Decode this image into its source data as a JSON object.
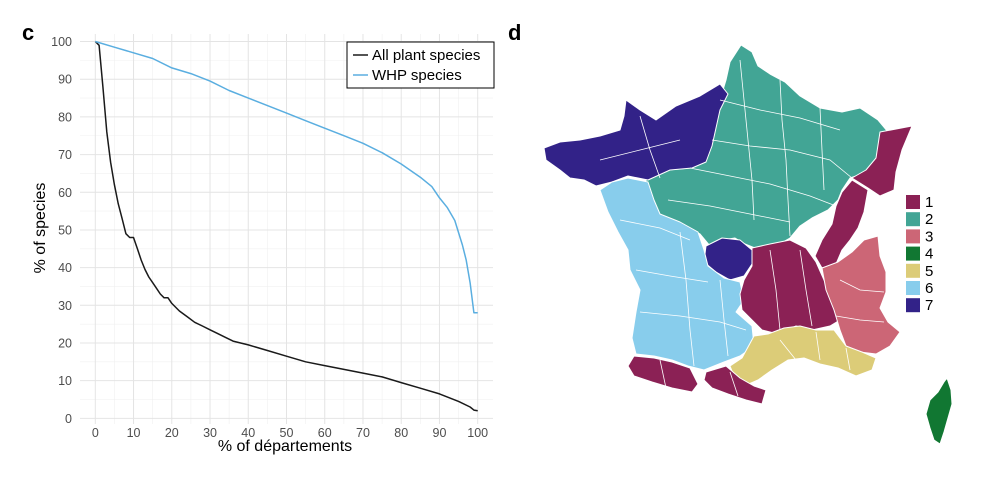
{
  "panel_c_label": "c",
  "panel_d_label": "d",
  "chart_data": {
    "type": "line",
    "xlabel": "% of départements",
    "ylabel": "% of species",
    "xlim": [
      -4,
      104
    ],
    "ylim": [
      -1.5,
      102
    ],
    "x_ticks": [
      0,
      10,
      20,
      30,
      40,
      50,
      60,
      70,
      80,
      90,
      100
    ],
    "y_ticks": [
      0,
      10,
      20,
      30,
      40,
      50,
      60,
      70,
      80,
      90,
      100
    ],
    "grid": true,
    "legend_position": "top-right",
    "series": [
      {
        "name": "All plant species",
        "color": "#1a1a1a",
        "x": [
          0,
          1,
          2,
          3,
          4,
          5,
          6,
          7,
          8,
          9,
          10,
          11,
          12,
          13,
          14,
          15,
          16,
          17,
          18,
          19,
          20,
          22,
          24,
          26,
          28,
          30,
          32,
          34,
          36,
          38,
          40,
          45,
          50,
          55,
          60,
          65,
          70,
          75,
          80,
          85,
          90,
          95,
          98,
          99,
          100
        ],
        "values": [
          100,
          99,
          88,
          76,
          68,
          62,
          57,
          53,
          49,
          48,
          48,
          45,
          42,
          39.5,
          37.5,
          36,
          34.5,
          33,
          32,
          32,
          30.5,
          28.5,
          27,
          25.5,
          24.5,
          23.5,
          22.5,
          21.5,
          20.5,
          20,
          19.5,
          18,
          16.5,
          15,
          14,
          13,
          12,
          11,
          9.5,
          8,
          6.5,
          4.5,
          3,
          2.2,
          2
        ]
      },
      {
        "name": "WHP species",
        "color": "#5aaee0",
        "x": [
          0,
          5,
          10,
          15,
          20,
          25,
          30,
          35,
          40,
          45,
          50,
          55,
          60,
          65,
          70,
          75,
          80,
          85,
          88,
          90,
          92,
          94,
          96,
          97,
          98,
          99,
          100
        ],
        "values": [
          100,
          98.5,
          97,
          95.5,
          93,
          91.5,
          89.5,
          87,
          85,
          83,
          81,
          79,
          77,
          75,
          73,
          70.5,
          67.5,
          64,
          61.5,
          58.5,
          56,
          52.5,
          46,
          42,
          36,
          28,
          28
        ]
      }
    ]
  },
  "map": {
    "legend": [
      {
        "label": "1",
        "color": "#8b2155"
      },
      {
        "label": "2",
        "color": "#42a595"
      },
      {
        "label": "3",
        "color": "#cc6676"
      },
      {
        "label": "4",
        "color": "#117732"
      },
      {
        "label": "5",
        "color": "#dccc78"
      },
      {
        "label": "6",
        "color": "#88cdec"
      },
      {
        "label": "7",
        "color": "#322288"
      }
    ],
    "regions": [
      {
        "name": "brittany-normandy",
        "cluster": 7
      },
      {
        "name": "north-east-paris-basin",
        "cluster": 2
      },
      {
        "name": "alsace-jura-alps-north",
        "cluster": 1
      },
      {
        "name": "central-limousin",
        "cluster": 7
      },
      {
        "name": "massif-central-rhone",
        "cluster": 1
      },
      {
        "name": "south-west-pyrenees",
        "cluster": 1
      },
      {
        "name": "alps-south-east",
        "cluster": 3
      },
      {
        "name": "mediterranean",
        "cluster": 5
      },
      {
        "name": "atlantic-south-west",
        "cluster": 6
      },
      {
        "name": "corsica",
        "cluster": 4
      }
    ]
  }
}
